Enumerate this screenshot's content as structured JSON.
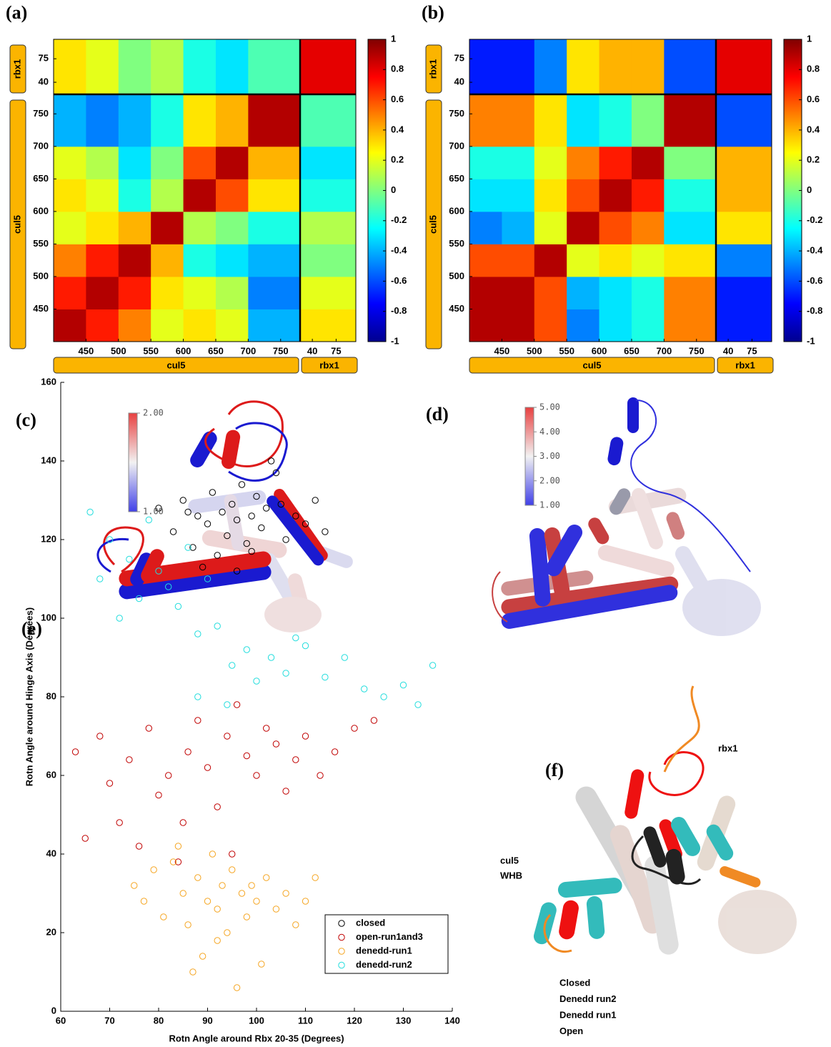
{
  "chart_data": [
    {
      "type": "heatmap",
      "panel_label": "(a)",
      "segments": [
        {
          "name": "cul5",
          "lim": [
            400,
            780
          ],
          "ticks": [
            450,
            500,
            550,
            600,
            650,
            700,
            750
          ],
          "bins": [
            400,
            450,
            500,
            550,
            600,
            650,
            700,
            780
          ]
        },
        {
          "name": "rbx1",
          "lim": [
            22,
            104
          ],
          "ticks": [
            40,
            75
          ],
          "bins": [
            22,
            104
          ]
        }
      ],
      "matrix": [
        [
          0.9,
          0.7,
          0.5,
          0.2,
          0.3,
          0.2,
          -0.4,
          0.3
        ],
        [
          0.7,
          0.9,
          0.7,
          0.3,
          0.2,
          0.1,
          -0.5,
          0.2
        ],
        [
          0.5,
          0.7,
          0.9,
          0.4,
          -0.2,
          -0.3,
          -0.4,
          0.0
        ],
        [
          0.2,
          0.3,
          0.4,
          0.9,
          0.1,
          0.0,
          -0.2,
          0.1
        ],
        [
          0.3,
          0.2,
          -0.2,
          0.1,
          0.9,
          0.6,
          0.3,
          -0.2
        ],
        [
          0.2,
          0.1,
          -0.3,
          0.0,
          0.6,
          0.9,
          0.4,
          -0.3
        ],
        [
          -0.4,
          -0.5,
          -0.4,
          -0.2,
          0.3,
          0.4,
          0.9,
          -0.1
        ],
        [
          0.3,
          0.2,
          0.0,
          0.1,
          -0.2,
          -0.3,
          -0.1,
          0.8
        ]
      ],
      "colorbar": {
        "lim": [
          -1,
          1
        ],
        "ticks": [
          -1,
          -0.8,
          -0.6,
          -0.4,
          -0.2,
          0,
          0.2,
          0.4,
          0.6,
          0.8,
          1
        ]
      }
    },
    {
      "type": "heatmap",
      "panel_label": "(b)",
      "segments": [
        {
          "name": "cul5",
          "lim": [
            400,
            780
          ],
          "ticks": [
            450,
            500,
            550,
            600,
            650,
            700,
            750
          ],
          "bins": [
            400,
            450,
            500,
            550,
            600,
            650,
            700,
            780
          ]
        },
        {
          "name": "rbx1",
          "lim": [
            22,
            104
          ],
          "ticks": [
            40,
            75
          ],
          "bins": [
            22,
            104
          ]
        }
      ],
      "matrix": [
        [
          0.9,
          0.9,
          0.6,
          -0.5,
          -0.3,
          -0.2,
          0.5,
          -0.7
        ],
        [
          0.9,
          0.9,
          0.6,
          -0.4,
          -0.3,
          -0.2,
          0.5,
          -0.7
        ],
        [
          0.6,
          0.6,
          0.9,
          0.2,
          0.3,
          0.2,
          0.3,
          -0.5
        ],
        [
          -0.5,
          -0.4,
          0.2,
          0.9,
          0.6,
          0.5,
          -0.3,
          0.3
        ],
        [
          -0.3,
          -0.3,
          0.3,
          0.6,
          0.9,
          0.7,
          -0.2,
          0.4
        ],
        [
          -0.2,
          -0.2,
          0.2,
          0.5,
          0.7,
          0.9,
          0.0,
          0.4
        ],
        [
          0.5,
          0.5,
          0.3,
          -0.3,
          -0.2,
          0.0,
          0.9,
          -0.6
        ],
        [
          -0.7,
          -0.7,
          -0.5,
          0.3,
          0.4,
          0.4,
          -0.6,
          0.8
        ]
      ],
      "colorbar": {
        "lim": [
          -1,
          1
        ],
        "ticks": [
          -1,
          -0.8,
          -0.6,
          -0.4,
          -0.2,
          0,
          0.2,
          0.4,
          0.6,
          0.8,
          1
        ]
      }
    },
    {
      "type": "scatter",
      "panel_label": "(e)",
      "xlabel": "Rotn Angle around Rbx 20-35 (Degrees)",
      "ylabel": "Rotn Angle around Hinge Axis (Degrees)",
      "xlim": [
        60,
        140
      ],
      "ylim": [
        0,
        160
      ],
      "xticks": [
        60,
        70,
        80,
        90,
        100,
        110,
        120,
        130,
        140
      ],
      "yticks": [
        0,
        20,
        40,
        60,
        80,
        100,
        120,
        140,
        160
      ],
      "legend": "lower right",
      "series": [
        {
          "name": "closed",
          "color": "#000000",
          "x": [
            80,
            83,
            85,
            87,
            88,
            90,
            91,
            92,
            93,
            94,
            95,
            96,
            97,
            98,
            99,
            100,
            101,
            102,
            104,
            106,
            108,
            110,
            112,
            114,
            89,
            96,
            103,
            86,
            99,
            105
          ],
          "values": [
            128,
            122,
            130,
            118,
            126,
            124,
            132,
            116,
            127,
            121,
            129,
            125,
            134,
            119,
            126,
            131,
            123,
            128,
            137,
            120,
            126,
            124,
            130,
            122,
            113,
            112,
            140,
            127,
            117,
            129
          ]
        },
        {
          "name": "open-run1and3",
          "color": "#c00000",
          "x": [
            63,
            65,
            68,
            70,
            72,
            74,
            76,
            78,
            80,
            82,
            84,
            86,
            88,
            90,
            92,
            94,
            96,
            98,
            100,
            102,
            104,
            106,
            108,
            110,
            113,
            116,
            120,
            124,
            85,
            95
          ],
          "values": [
            66,
            44,
            70,
            58,
            48,
            64,
            42,
            72,
            55,
            60,
            38,
            66,
            74,
            62,
            52,
            70,
            78,
            65,
            60,
            72,
            68,
            56,
            64,
            70,
            60,
            66,
            72,
            74,
            48,
            40
          ]
        },
        {
          "name": "denedd-run1",
          "color": "#f5a623",
          "x": [
            75,
            77,
            79,
            81,
            83,
            85,
            86,
            88,
            89,
            90,
            91,
            92,
            93,
            94,
            95,
            96,
            97,
            98,
            100,
            101,
            102,
            104,
            106,
            108,
            110,
            112,
            87,
            92,
            99,
            84
          ],
          "values": [
            32,
            28,
            36,
            24,
            38,
            30,
            22,
            34,
            14,
            28,
            40,
            26,
            32,
            20,
            36,
            6,
            30,
            24,
            28,
            12,
            34,
            26,
            30,
            22,
            28,
            34,
            10,
            18,
            32,
            42
          ]
        },
        {
          "name": "denedd-run2",
          "color": "#22dddd",
          "x": [
            66,
            68,
            70,
            72,
            74,
            76,
            78,
            80,
            82,
            84,
            86,
            88,
            90,
            92,
            95,
            98,
            100,
            103,
            106,
            110,
            114,
            118,
            122,
            126,
            130,
            133,
            136,
            88,
            94,
            108
          ],
          "values": [
            127,
            110,
            120,
            100,
            115,
            105,
            125,
            112,
            108,
            103,
            118,
            96,
            110,
            98,
            88,
            92,
            84,
            90,
            86,
            93,
            85,
            90,
            82,
            80,
            83,
            78,
            88,
            80,
            78,
            95
          ]
        }
      ]
    }
  ],
  "panels": {
    "c": {
      "label": "(c)",
      "colorbar_ticks": [
        {
          "value": 2,
          "label": "2.00"
        },
        {
          "value": 1,
          "label": "1.00"
        }
      ],
      "colorbar_lim": [
        1,
        2
      ]
    },
    "d": {
      "label": "(d)",
      "colorbar_ticks": [
        {
          "value": 5,
          "label": "5.00"
        },
        {
          "value": 4,
          "label": "4.00"
        },
        {
          "value": 3,
          "label": "3.00"
        },
        {
          "value": 2,
          "label": "2.00"
        },
        {
          "value": 1,
          "label": "1.00"
        }
      ],
      "colorbar_lim": [
        1,
        5
      ]
    },
    "f": {
      "label": "(f)",
      "rbx1_label": "rbx1",
      "cul5_label_lines": [
        "cul5",
        "WHB"
      ],
      "legend": [
        {
          "text": "Closed",
          "color": "#000000"
        },
        {
          "text": "Denedd run2",
          "color": "#22dddd"
        },
        {
          "text": "Denedd run1",
          "color": "#f08a24"
        },
        {
          "text": "Open",
          "color": "#ee1111"
        }
      ]
    }
  }
}
